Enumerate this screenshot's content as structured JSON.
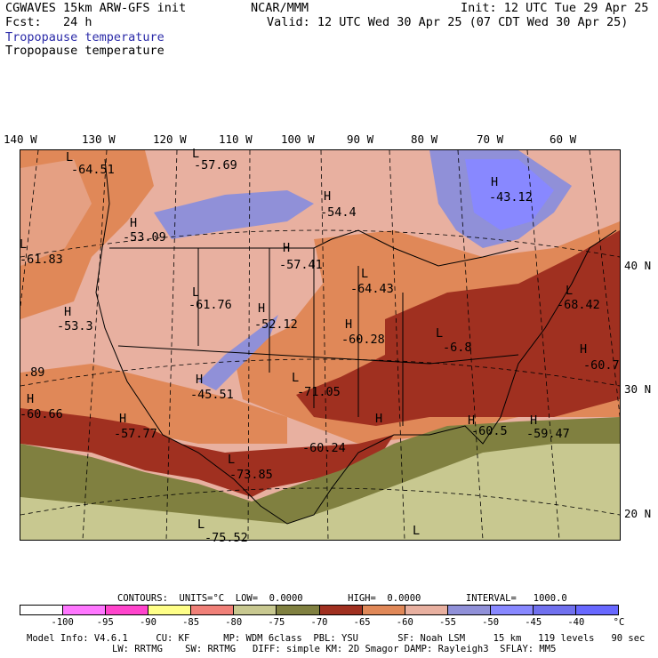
{
  "header": {
    "model": "CGWAVES 15km ARW-GFS init",
    "fcst": "Fcst:   24 h",
    "org": "NCAR/MMM",
    "init": "Init: 12 UTC Tue 29 Apr 25",
    "valid": "Valid: 12 UTC Wed 30 Apr 25 (07 CDT Wed 30 Apr 25)",
    "field_blue": "Tropopause temperature",
    "field_black": "Tropopause temperature"
  },
  "longitudes": [
    "140 W",
    "130 W",
    "120 W",
    "110 W",
    "100 W",
    "90 W",
    "80 W",
    "70 W",
    "60 W"
  ],
  "latitudes": [
    "40 N",
    "30 N",
    "20 N"
  ],
  "map_labels": [
    {
      "t": "L",
      "c": "-64.51"
    },
    {
      "t": "L",
      "c": "-57.69"
    },
    {
      "t": "H",
      "c": "-54.4"
    },
    {
      "t": "H",
      "c": "-43.12"
    },
    {
      "t": "H",
      "c": "-53.09"
    },
    {
      "t": "L",
      "c": "-61.83"
    },
    {
      "t": "H",
      "c": "-57.41"
    },
    {
      "t": "L",
      "c": "-64.43"
    },
    {
      "t": "L",
      "c": "-68.42"
    },
    {
      "t": "L",
      "c": "-61.76"
    },
    {
      "t": "H",
      "c": "-52.12"
    },
    {
      "t": "H",
      "c": "-53.3"
    },
    {
      "t": "H",
      "c": "-60.28"
    },
    {
      "t": "L",
      "c": "-6.8"
    },
    {
      "t": "H",
      "c": "-60.7"
    },
    {
      "t": "",
      "c": ".89"
    },
    {
      "t": "H",
      "c": "-45.51"
    },
    {
      "t": "L",
      "c": "-71.05"
    },
    {
      "t": "H",
      "c": "-60.66"
    },
    {
      "t": "H",
      "c": "-57.77"
    },
    {
      "t": "H",
      "c": "-60.24"
    },
    {
      "t": "H",
      "c": "-60.5"
    },
    {
      "t": "H",
      "c": "-59.47"
    },
    {
      "t": "L",
      "c": "-73.85"
    },
    {
      "t": "L",
      "c": "-75.52"
    },
    {
      "t": "L",
      "c": ""
    }
  ],
  "contours": "CONTOURS:  UNITS=°C  LOW=  0.0000        HIGH=  0.0000        INTERVAL=   1000.0",
  "colorbar": {
    "colors": [
      "#ffffff",
      "#ff77ff",
      "#ff44cc",
      "#ffff88",
      "#f08078",
      "#c8c890",
      "#808040",
      "#a03020",
      "#e08858",
      "#e8b0a0",
      "#9090d8",
      "#8888ff",
      "#7070ee",
      "#6868ff"
    ],
    "ticks": [
      "-100",
      "-95",
      "-90",
      "-85",
      "-80",
      "-75",
      "-70",
      "-65",
      "-60",
      "-55",
      "-50",
      "-45",
      "-40",
      "°C"
    ]
  },
  "footer": {
    "line1": "Model Info: V4.6.1     CU: KF      MP: WDM 6class  PBL: YSU       SF: Noah LSM     15 km   119 levels   90 sec",
    "line2": "LW: RRTMG    SW: RRTMG   DIFF: simple KM: 2D Smagor DAMP: Rayleigh3  SFLAY: MM5"
  },
  "colors": {
    "text_blue": "#2a2aa8",
    "frame": "#000000"
  }
}
